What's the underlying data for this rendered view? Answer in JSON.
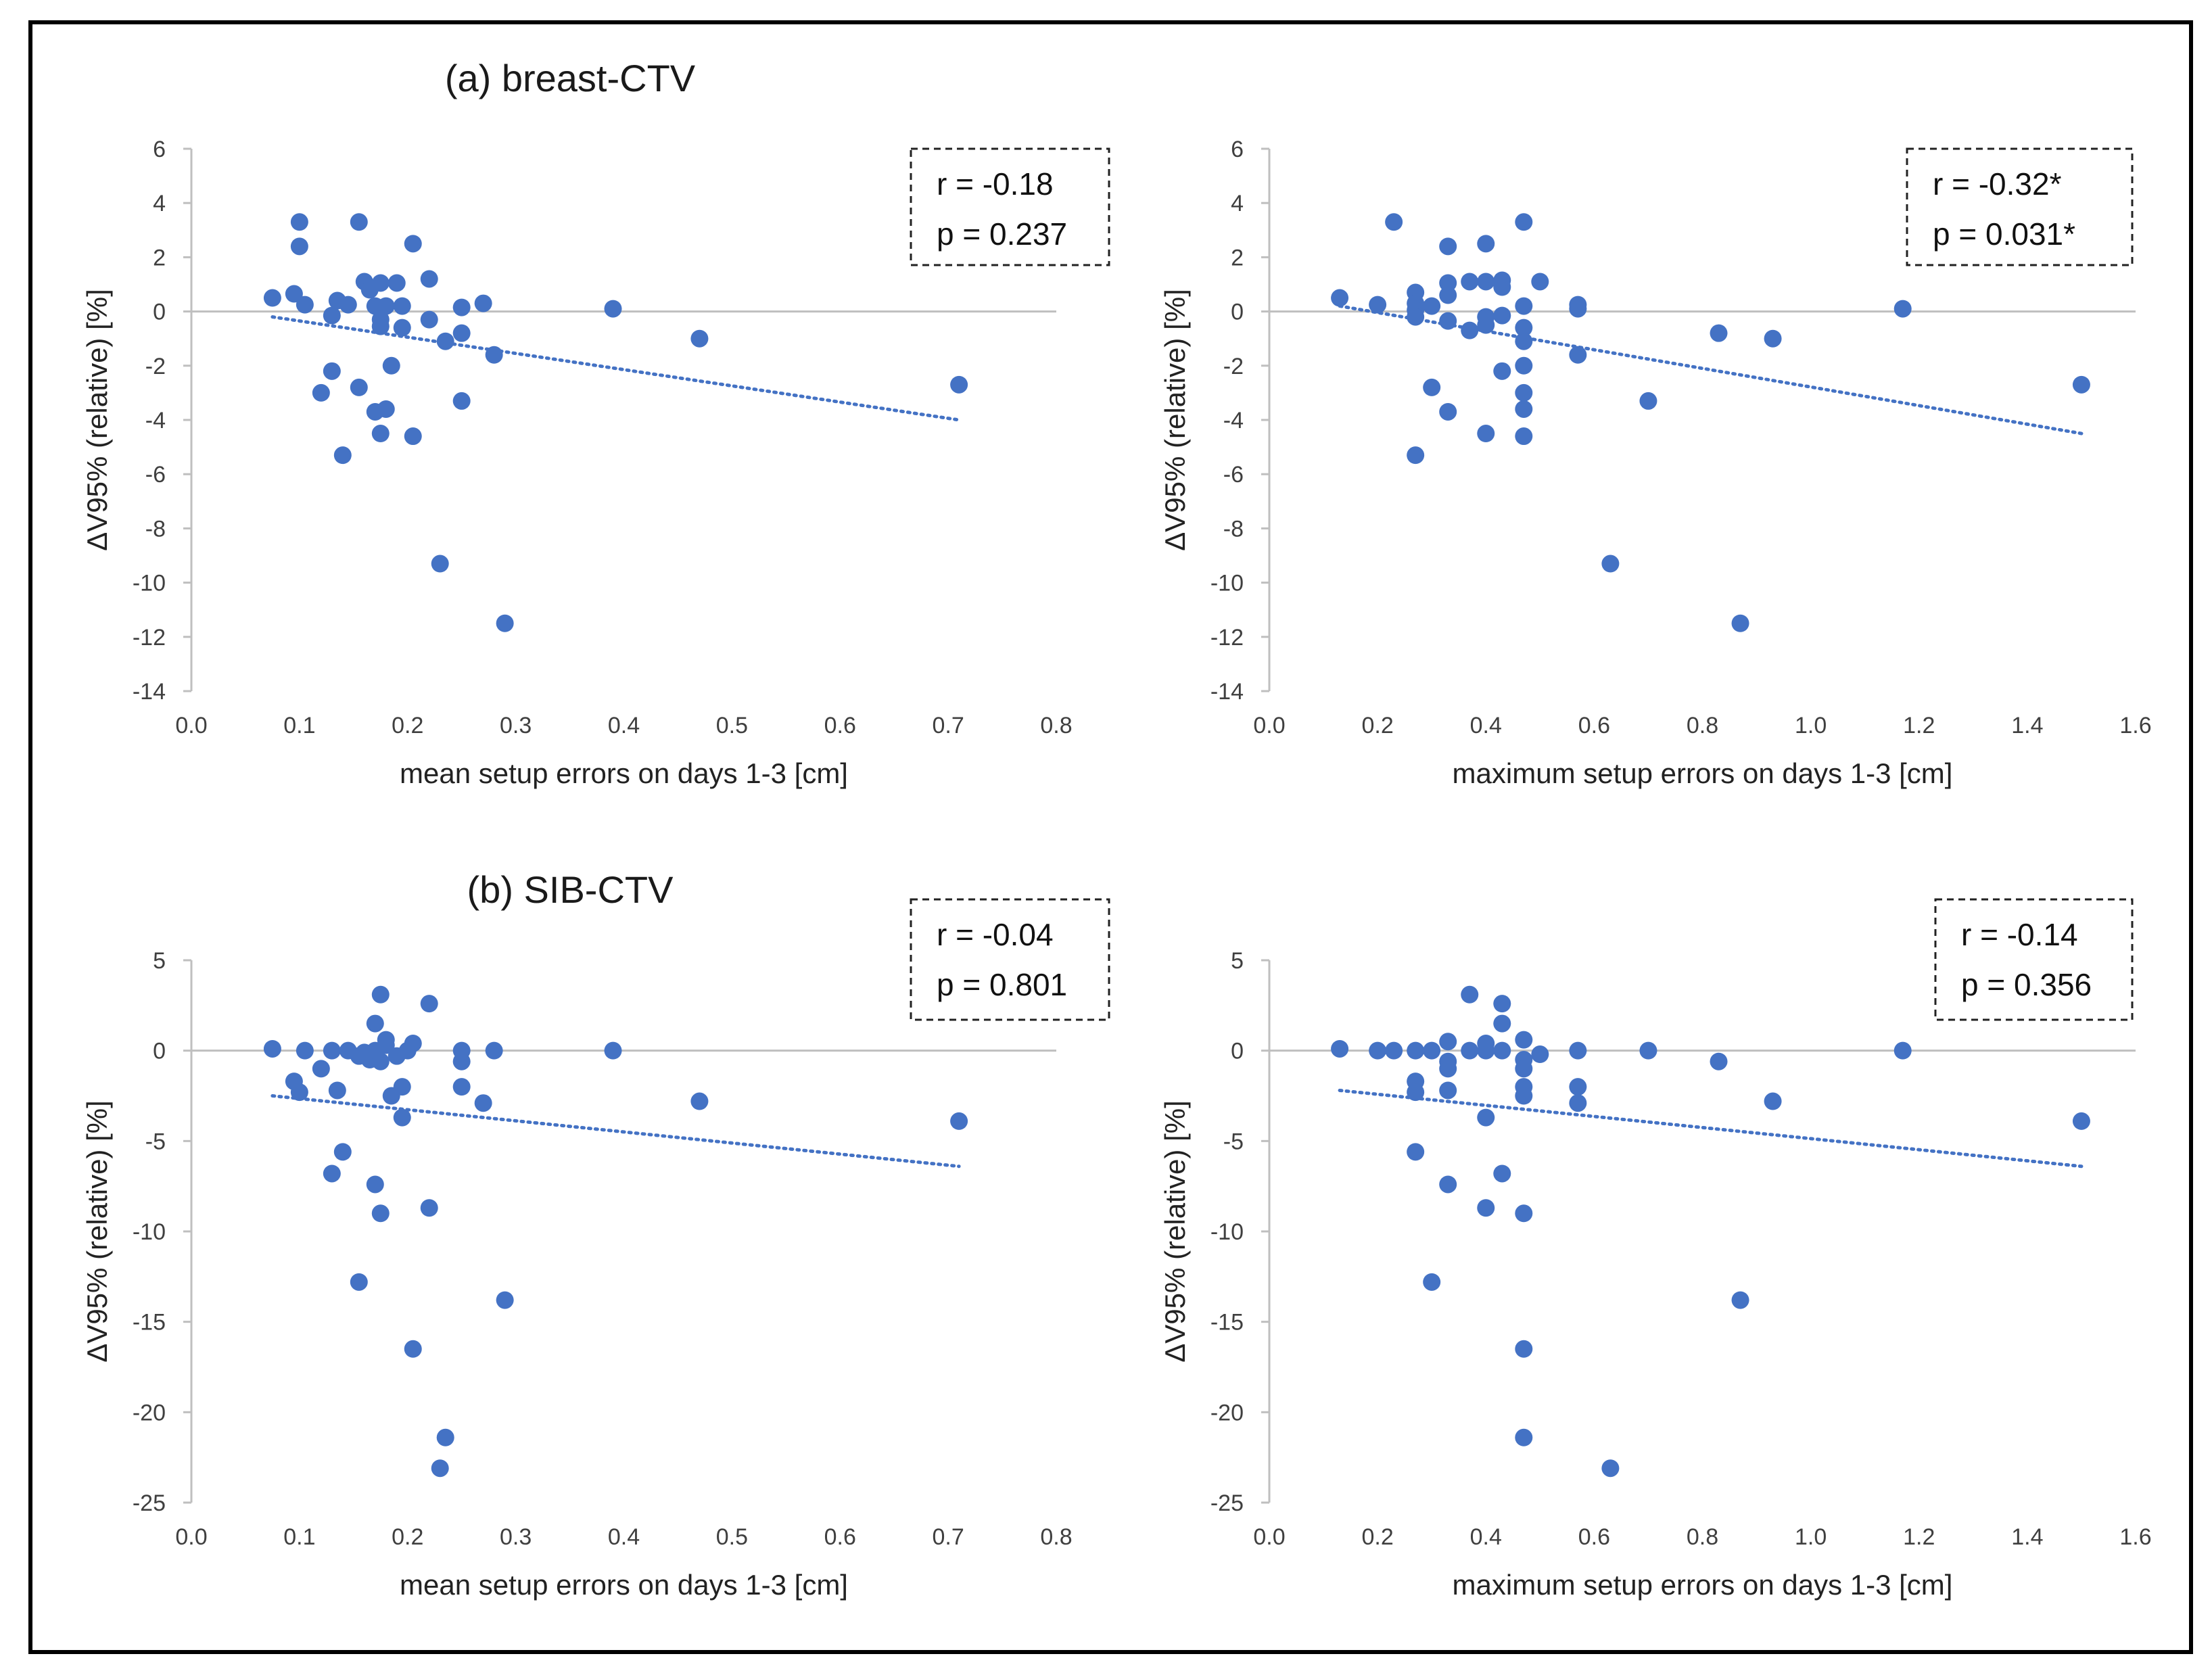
{
  "panels": {
    "a": {
      "title": "(a) breast-CTV"
    },
    "b": {
      "title": "(b) SIB-CTV"
    }
  },
  "colors": {
    "marker": "#4472C4",
    "trendline": "#4472C4",
    "axis": "#bfbfbf",
    "frame": "#000000"
  },
  "chart_data": [
    {
      "id": "a-mean",
      "type": "scatter",
      "title": "(a) breast-CTV",
      "xlabel": "mean setup errors on days 1-3 [cm]",
      "ylabel": "ΔV95% (relative) [%]",
      "xlim": [
        0,
        0.8
      ],
      "xticks": [
        0.0,
        0.1,
        0.2,
        0.3,
        0.4,
        0.5,
        0.6,
        0.7,
        0.8
      ],
      "xdec": 1,
      "ylim": [
        -14,
        6
      ],
      "yticks": [
        6,
        4,
        2,
        0,
        -2,
        -4,
        -6,
        -8,
        -10,
        -12,
        -14
      ],
      "stats": {
        "r": "r = -0.18",
        "p": "p = 0.237"
      },
      "trendline": {
        "x": [
          0.075,
          0.71
        ],
        "y": [
          -0.2,
          -4.0
        ]
      },
      "points": [
        [
          0.075,
          0.5
        ],
        [
          0.095,
          0.65
        ],
        [
          0.1,
          3.3
        ],
        [
          0.1,
          2.4
        ],
        [
          0.105,
          0.25
        ],
        [
          0.12,
          -3.0
        ],
        [
          0.13,
          -2.2
        ],
        [
          0.13,
          -0.15
        ],
        [
          0.135,
          0.4
        ],
        [
          0.14,
          -5.3
        ],
        [
          0.145,
          0.25
        ],
        [
          0.155,
          3.3
        ],
        [
          0.155,
          -2.8
        ],
        [
          0.16,
          1.1
        ],
        [
          0.165,
          0.8
        ],
        [
          0.17,
          -3.7
        ],
        [
          0.17,
          0.2
        ],
        [
          0.175,
          -0.3
        ],
        [
          0.175,
          1.05
        ],
        [
          0.175,
          -0.55
        ],
        [
          0.175,
          -4.5
        ],
        [
          0.18,
          -3.6
        ],
        [
          0.18,
          0.2
        ],
        [
          0.185,
          -2.0
        ],
        [
          0.19,
          1.05
        ],
        [
          0.195,
          0.2
        ],
        [
          0.195,
          -0.6
        ],
        [
          0.205,
          2.5
        ],
        [
          0.205,
          -4.6
        ],
        [
          0.22,
          1.2
        ],
        [
          0.22,
          -0.3
        ],
        [
          0.23,
          -9.3
        ],
        [
          0.235,
          -1.1
        ],
        [
          0.25,
          0.15
        ],
        [
          0.25,
          -0.8
        ],
        [
          0.25,
          -3.3
        ],
        [
          0.27,
          0.3
        ],
        [
          0.28,
          -1.6
        ],
        [
          0.29,
          -11.5
        ],
        [
          0.39,
          0.1
        ],
        [
          0.47,
          -1.0
        ],
        [
          0.71,
          -2.7
        ]
      ]
    },
    {
      "id": "a-max",
      "type": "scatter",
      "xlabel": "maximum setup errors on days 1-3 [cm]",
      "ylabel": "ΔV95% (relative) [%]",
      "xlim": [
        0,
        1.6
      ],
      "xticks": [
        0.0,
        0.2,
        0.4,
        0.6,
        0.8,
        1.0,
        1.2,
        1.4,
        1.6
      ],
      "xdec": 1,
      "ylim": [
        -14,
        6
      ],
      "yticks": [
        6,
        4,
        2,
        0,
        -2,
        -4,
        -6,
        -8,
        -10,
        -12,
        -14
      ],
      "stats": {
        "r": "r = -0.32*",
        "p": "p = 0.031*"
      },
      "trendline": {
        "x": [
          0.13,
          1.5
        ],
        "y": [
          0.2,
          -4.5
        ]
      },
      "points": [
        [
          0.13,
          0.5
        ],
        [
          0.2,
          0.25
        ],
        [
          0.23,
          3.3
        ],
        [
          0.27,
          0.7
        ],
        [
          0.27,
          0.3
        ],
        [
          0.27,
          0.05
        ],
        [
          0.27,
          -0.2
        ],
        [
          0.27,
          -5.3
        ],
        [
          0.3,
          0.2
        ],
        [
          0.3,
          -2.8
        ],
        [
          0.33,
          2.4
        ],
        [
          0.33,
          1.05
        ],
        [
          0.33,
          0.6
        ],
        [
          0.33,
          -0.35
        ],
        [
          0.33,
          -3.7
        ],
        [
          0.37,
          1.1
        ],
        [
          0.37,
          -0.7
        ],
        [
          0.4,
          2.5
        ],
        [
          0.4,
          1.1
        ],
        [
          0.4,
          -0.2
        ],
        [
          0.4,
          -0.5
        ],
        [
          0.4,
          -4.5
        ],
        [
          0.43,
          1.15
        ],
        [
          0.43,
          0.9
        ],
        [
          0.43,
          -0.15
        ],
        [
          0.43,
          -2.2
        ],
        [
          0.47,
          3.3
        ],
        [
          0.47,
          0.2
        ],
        [
          0.47,
          -0.6
        ],
        [
          0.47,
          -1.1
        ],
        [
          0.47,
          -2.0
        ],
        [
          0.47,
          -3.0
        ],
        [
          0.47,
          -3.6
        ],
        [
          0.47,
          -4.6
        ],
        [
          0.5,
          1.1
        ],
        [
          0.57,
          0.25
        ],
        [
          0.57,
          0.1
        ],
        [
          0.57,
          -1.6
        ],
        [
          0.63,
          -9.3
        ],
        [
          0.7,
          -3.3
        ],
        [
          0.83,
          -0.8
        ],
        [
          0.87,
          -11.5
        ],
        [
          0.93,
          -1.0
        ],
        [
          1.17,
          0.1
        ],
        [
          1.5,
          -2.7
        ]
      ]
    },
    {
      "id": "b-mean",
      "type": "scatter",
      "title": "(b) SIB-CTV",
      "xlabel": "mean setup errors on days 1-3 [cm]",
      "ylabel": "ΔV95% (relative) [%]",
      "xlim": [
        0,
        0.8
      ],
      "xticks": [
        0.0,
        0.1,
        0.2,
        0.3,
        0.4,
        0.5,
        0.6,
        0.7,
        0.8
      ],
      "xdec": 1,
      "ylim": [
        -25,
        5
      ],
      "yticks": [
        5,
        0,
        -5,
        -10,
        -15,
        -20,
        -25
      ],
      "stats": {
        "r": "r = -0.04",
        "p": "p = 0.801"
      },
      "trendline": {
        "x": [
          0.075,
          0.71
        ],
        "y": [
          -2.5,
          -6.4
        ]
      },
      "points": [
        [
          0.075,
          0.1
        ],
        [
          0.095,
          -1.7
        ],
        [
          0.1,
          -2.3
        ],
        [
          0.105,
          0.0
        ],
        [
          0.12,
          -1.0
        ],
        [
          0.13,
          0.0
        ],
        [
          0.13,
          -6.8
        ],
        [
          0.135,
          -2.2
        ],
        [
          0.14,
          -5.6
        ],
        [
          0.145,
          0.0
        ],
        [
          0.155,
          -12.8
        ],
        [
          0.155,
          -0.3
        ],
        [
          0.16,
          -0.1
        ],
        [
          0.165,
          -0.5
        ],
        [
          0.17,
          -7.4
        ],
        [
          0.17,
          1.5
        ],
        [
          0.17,
          0.0
        ],
        [
          0.175,
          3.1
        ],
        [
          0.175,
          -0.6
        ],
        [
          0.175,
          -9.0
        ],
        [
          0.18,
          0.3
        ],
        [
          0.18,
          0.6
        ],
        [
          0.185,
          -2.5
        ],
        [
          0.19,
          -0.3
        ],
        [
          0.195,
          -3.7
        ],
        [
          0.195,
          -2.0
        ],
        [
          0.2,
          0.0
        ],
        [
          0.205,
          0.4
        ],
        [
          0.205,
          -16.5
        ],
        [
          0.22,
          2.6
        ],
        [
          0.22,
          -8.7
        ],
        [
          0.23,
          -23.1
        ],
        [
          0.235,
          -21.4
        ],
        [
          0.25,
          0.0
        ],
        [
          0.25,
          -0.6
        ],
        [
          0.25,
          -2.0
        ],
        [
          0.27,
          -2.9
        ],
        [
          0.28,
          0.0
        ],
        [
          0.29,
          -13.8
        ],
        [
          0.39,
          0.0
        ],
        [
          0.47,
          -2.8
        ],
        [
          0.71,
          -3.9
        ]
      ]
    },
    {
      "id": "b-max",
      "type": "scatter",
      "xlabel": "maximum setup errors on days 1-3 [cm]",
      "ylabel": "ΔV95% (relative) [%]",
      "xlim": [
        0,
        1.6
      ],
      "xticks": [
        0.0,
        0.2,
        0.4,
        0.6,
        0.8,
        1.0,
        1.2,
        1.4,
        1.6
      ],
      "xdec": 1,
      "ylim": [
        -25,
        5
      ],
      "yticks": [
        5,
        0,
        -5,
        -10,
        -15,
        -20,
        -25
      ],
      "stats": {
        "r": "r = -0.14",
        "p": "p = 0.356"
      },
      "trendline": {
        "x": [
          0.13,
          1.5
        ],
        "y": [
          -2.2,
          -6.4
        ]
      },
      "points": [
        [
          0.13,
          0.1
        ],
        [
          0.2,
          0.0
        ],
        [
          0.23,
          0.0
        ],
        [
          0.27,
          0.0
        ],
        [
          0.27,
          -1.7
        ],
        [
          0.27,
          -2.3
        ],
        [
          0.27,
          -5.6
        ],
        [
          0.3,
          0.0
        ],
        [
          0.3,
          -12.8
        ],
        [
          0.33,
          0.5
        ],
        [
          0.33,
          -0.6
        ],
        [
          0.33,
          -1.0
        ],
        [
          0.33,
          -2.2
        ],
        [
          0.33,
          -7.4
        ],
        [
          0.37,
          3.1
        ],
        [
          0.37,
          0.0
        ],
        [
          0.4,
          0.4
        ],
        [
          0.4,
          0.0
        ],
        [
          0.4,
          -3.7
        ],
        [
          0.4,
          -8.7
        ],
        [
          0.43,
          2.6
        ],
        [
          0.43,
          1.5
        ],
        [
          0.43,
          0.0
        ],
        [
          0.43,
          -6.8
        ],
        [
          0.47,
          0.6
        ],
        [
          0.47,
          -0.5
        ],
        [
          0.47,
          -1.0
        ],
        [
          0.47,
          -2.0
        ],
        [
          0.47,
          -2.5
        ],
        [
          0.47,
          -9.0
        ],
        [
          0.47,
          -16.5
        ],
        [
          0.47,
          -21.4
        ],
        [
          0.5,
          -0.2
        ],
        [
          0.57,
          0.0
        ],
        [
          0.57,
          -2.0
        ],
        [
          0.57,
          -2.9
        ],
        [
          0.63,
          -23.1
        ],
        [
          0.7,
          0.0
        ],
        [
          0.83,
          -0.6
        ],
        [
          0.87,
          -13.8
        ],
        [
          0.93,
          -2.8
        ],
        [
          1.17,
          0.0
        ],
        [
          1.5,
          -3.9
        ]
      ]
    }
  ]
}
